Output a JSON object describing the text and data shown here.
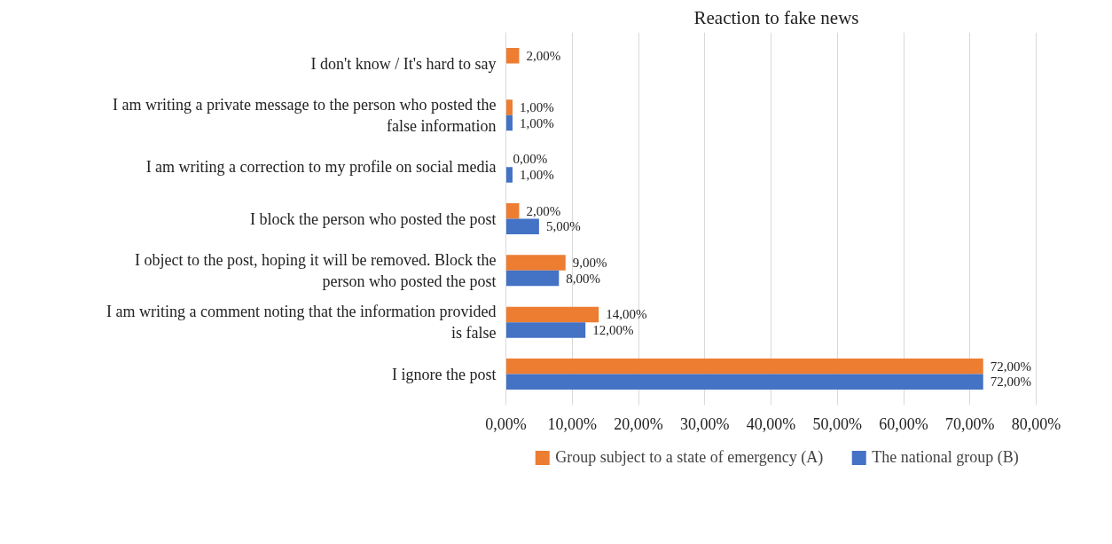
{
  "chart_data": {
    "type": "bar",
    "orientation": "horizontal",
    "title": "Reaction to fake news",
    "categories": [
      "I don't know / It's hard to say",
      "I am writing a private message to the person who posted the false information",
      "I am writing a correction to my profile on social media",
      "I block the person who posted the post",
      "I object to the post, hoping it will be removed. Block the person who posted the post",
      "I am writing a comment noting that the information provided is false",
      "I ignore the post"
    ],
    "series": [
      {
        "name": "Group subject to a state of emergency (A)",
        "color": "#ed7d31",
        "values": [
          2,
          1,
          0,
          2,
          9,
          14,
          72
        ],
        "value_labels": [
          "2,00%",
          "1,00%",
          "0,00%",
          "2,00%",
          "9,00%",
          "14,00%",
          "72,00%"
        ]
      },
      {
        "name": "The national group (B)",
        "color": "#4472c4",
        "values": [
          null,
          1,
          1,
          5,
          8,
          12,
          72
        ],
        "value_labels": [
          null,
          "1,00%",
          "1,00%",
          "5,00%",
          "8,00%",
          "12,00%",
          "72,00%"
        ]
      }
    ],
    "xlim": [
      0,
      80
    ],
    "xticks": [
      {
        "value": 0,
        "label": "0,00%"
      },
      {
        "value": 10,
        "label": "10,00%"
      },
      {
        "value": 20,
        "label": "20,00%"
      },
      {
        "value": 30,
        "label": "30,00%"
      },
      {
        "value": 40,
        "label": "40,00%"
      },
      {
        "value": 50,
        "label": "50,00%"
      },
      {
        "value": 60,
        "label": "60,00%"
      },
      {
        "value": 70,
        "label": "70,00%"
      },
      {
        "value": 80,
        "label": "80,00%"
      }
    ],
    "grid": "x",
    "legend": "bottom"
  }
}
